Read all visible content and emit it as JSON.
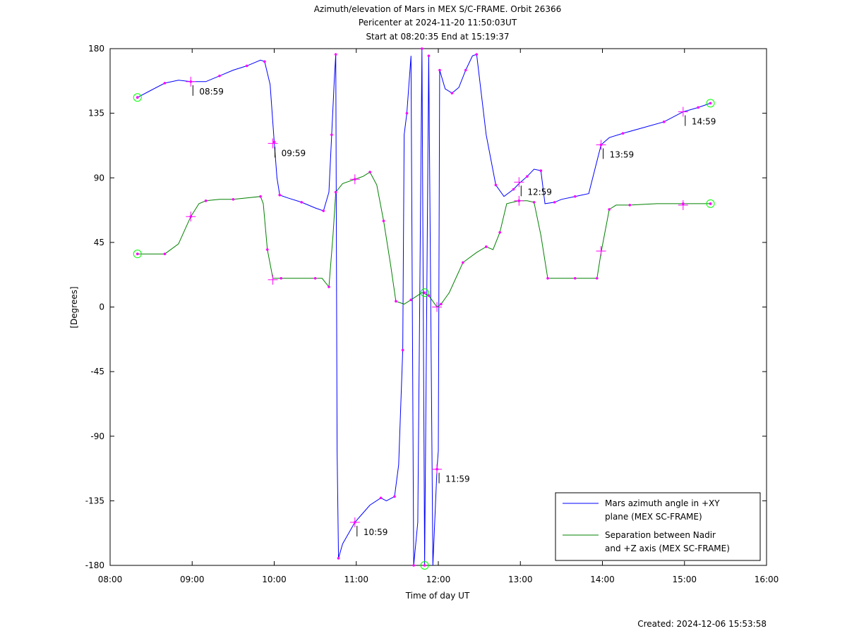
{
  "chart_data": {
    "type": "line",
    "title": [
      "Azimuth/elevation of Mars in MEX S/C-FRAME.  Orbit 26366",
      "Pericenter at 2024-11-20 11:50:03UT",
      "Start at 08:20:35 End at 15:19:37"
    ],
    "xlabel": "Time of day UT",
    "ylabel": "[Degrees]",
    "footer": "Created: 2024-12-06 15:53:58",
    "x_ticks": [
      "08:00",
      "09:00",
      "10:00",
      "11:00",
      "12:00",
      "13:00",
      "14:00",
      "15:00",
      "16:00"
    ],
    "y_ticks": [
      "180",
      "135",
      "90",
      "45",
      "0",
      "-45",
      "-90",
      "-135",
      "-180"
    ],
    "xlim": [
      "08:00",
      "16:00"
    ],
    "ylim": [
      -180,
      180
    ],
    "grid": false,
    "legend_position": "bottom-right",
    "colors": {
      "azimuth": "#0000ff",
      "separation": "#008000",
      "marker": "#ff00ff",
      "endpoint": "#00ff00"
    },
    "series": [
      {
        "name": "Mars azimuth angle in +XY plane (MEX SC-FRAME)",
        "legend_lines": [
          "Mars azimuth angle in +XY",
          "plane (MEX SC-FRAME)"
        ],
        "color": "#0000ff",
        "points": [
          [
            "08:20",
            146
          ],
          [
            "08:30",
            151
          ],
          [
            "08:40",
            156
          ],
          [
            "08:50",
            158
          ],
          [
            "08:59",
            157
          ],
          [
            "09:10",
            157
          ],
          [
            "09:20",
            161
          ],
          [
            "09:30",
            165
          ],
          [
            "09:40",
            168
          ],
          [
            "09:50",
            172
          ],
          [
            "09:53",
            171
          ],
          [
            "09:57",
            155
          ],
          [
            "10:00",
            115
          ],
          [
            "10:02",
            90
          ],
          [
            "10:04",
            78
          ],
          [
            "10:10",
            76
          ],
          [
            "10:20",
            73
          ],
          [
            "10:30",
            69
          ],
          [
            "10:36",
            67
          ],
          [
            "10:40",
            80
          ],
          [
            "10:42",
            120
          ],
          [
            "10:44",
            160
          ],
          [
            "10:45",
            176
          ],
          [
            "10:46",
            -100
          ],
          [
            "10:47",
            -175
          ],
          [
            "10:50",
            -165
          ],
          [
            "10:59",
            -150
          ],
          [
            "11:10",
            -138
          ],
          [
            "11:18",
            -133
          ],
          [
            "11:22",
            -135
          ],
          [
            "11:28",
            -132
          ],
          [
            "11:31",
            -110
          ],
          [
            "11:34",
            -30
          ],
          [
            "11:35",
            120
          ],
          [
            "11:37",
            135
          ],
          [
            "11:40",
            175
          ],
          [
            "11:42",
            -180
          ],
          [
            "11:45",
            -150
          ],
          [
            "11:48",
            180
          ],
          [
            "11:50",
            -180
          ],
          [
            "11:53",
            175
          ],
          [
            "11:56",
            -180
          ],
          [
            "11:59",
            -113
          ],
          [
            "12:00",
            -100
          ],
          [
            "12:01",
            165
          ],
          [
            "12:05",
            152
          ],
          [
            "12:10",
            149
          ],
          [
            "12:15",
            153
          ],
          [
            "12:20",
            165
          ],
          [
            "12:25",
            175
          ],
          [
            "12:28",
            176
          ],
          [
            "12:35",
            120
          ],
          [
            "12:42",
            85
          ],
          [
            "12:48",
            77
          ],
          [
            "12:55",
            82
          ],
          [
            "12:59",
            86
          ],
          [
            "13:05",
            91
          ],
          [
            "13:10",
            96
          ],
          [
            "13:15",
            95
          ],
          [
            "13:18",
            72
          ],
          [
            "13:25",
            73
          ],
          [
            "13:30",
            75
          ],
          [
            "13:40",
            77
          ],
          [
            "13:50",
            79
          ],
          [
            "13:59",
            113
          ],
          [
            "14:05",
            118
          ],
          [
            "14:15",
            121
          ],
          [
            "14:30",
            125
          ],
          [
            "14:45",
            129
          ],
          [
            "14:59",
            136
          ],
          [
            "15:10",
            139
          ],
          [
            "15:19",
            142
          ]
        ]
      },
      {
        "name": "Separation between Nadir and +Z axis (MEX SC-FRAME)",
        "legend_lines": [
          "Separation between Nadir",
          "and +Z axis (MEX SC-FRAME)"
        ],
        "color": "#008000",
        "points": [
          [
            "08:20",
            37
          ],
          [
            "08:30",
            37
          ],
          [
            "08:40",
            37
          ],
          [
            "08:50",
            44
          ],
          [
            "08:59",
            63
          ],
          [
            "09:05",
            72
          ],
          [
            "09:10",
            74
          ],
          [
            "09:20",
            75
          ],
          [
            "09:30",
            75
          ],
          [
            "09:40",
            76
          ],
          [
            "09:50",
            77
          ],
          [
            "09:52",
            72
          ],
          [
            "09:55",
            40
          ],
          [
            "09:59",
            20
          ],
          [
            "10:05",
            20
          ],
          [
            "10:20",
            20
          ],
          [
            "10:30",
            20
          ],
          [
            "10:35",
            20
          ],
          [
            "10:40",
            14
          ],
          [
            "10:43",
            50
          ],
          [
            "10:45",
            80
          ],
          [
            "10:50",
            86
          ],
          [
            "10:59",
            89
          ],
          [
            "11:05",
            91
          ],
          [
            "11:10",
            94
          ],
          [
            "11:15",
            85
          ],
          [
            "11:20",
            60
          ],
          [
            "11:25",
            30
          ],
          [
            "11:29",
            4
          ],
          [
            "11:35",
            2
          ],
          [
            "11:40",
            5
          ],
          [
            "11:48",
            10
          ],
          [
            "11:53",
            8
          ],
          [
            "11:59",
            0
          ],
          [
            "12:02",
            2
          ],
          [
            "12:08",
            10
          ],
          [
            "12:18",
            31
          ],
          [
            "12:28",
            38
          ],
          [
            "12:35",
            42
          ],
          [
            "12:40",
            40
          ],
          [
            "12:45",
            52
          ],
          [
            "12:50",
            72
          ],
          [
            "12:59",
            74
          ],
          [
            "13:05",
            74
          ],
          [
            "13:10",
            73
          ],
          [
            "13:15",
            50
          ],
          [
            "13:20",
            20
          ],
          [
            "13:30",
            20
          ],
          [
            "13:40",
            20
          ],
          [
            "13:50",
            20
          ],
          [
            "13:56",
            20
          ],
          [
            "13:59",
            38
          ],
          [
            "14:05",
            68
          ],
          [
            "14:10",
            71
          ],
          [
            "14:20",
            71
          ],
          [
            "14:40",
            72
          ],
          [
            "14:59",
            72
          ],
          [
            "15:10",
            72
          ],
          [
            "15:19",
            72
          ]
        ]
      }
    ],
    "hour_markers": {
      "azimuth": [
        {
          "time": "08:59",
          "y": 157,
          "label": "08:59"
        },
        {
          "time": "09:59",
          "y": 114,
          "label": "09:59"
        },
        {
          "time": "10:59",
          "y": -150,
          "label": "10:59"
        },
        {
          "time": "11:59",
          "y": -113,
          "label": "11:59"
        },
        {
          "time": "12:59",
          "y": 87,
          "label": "12:59"
        },
        {
          "time": "13:59",
          "y": 113,
          "label": "13:59"
        },
        {
          "time": "14:59",
          "y": 136,
          "label": "14:59"
        }
      ],
      "separation": [
        {
          "time": "08:59",
          "y": 63
        },
        {
          "time": "09:59",
          "y": 19
        },
        {
          "time": "10:59",
          "y": 89
        },
        {
          "time": "11:59",
          "y": 0
        },
        {
          "time": "12:59",
          "y": 74
        },
        {
          "time": "13:59",
          "y": 39
        },
        {
          "time": "14:59",
          "y": 71
        }
      ]
    },
    "endpoints": {
      "azimuth": [
        [
          "08:20",
          146
        ],
        [
          "15:19",
          142
        ],
        [
          "11:50",
          -180
        ]
      ],
      "separation": [
        [
          "08:20",
          37
        ],
        [
          "15:19",
          72
        ],
        [
          "11:50",
          10
        ]
      ]
    }
  }
}
